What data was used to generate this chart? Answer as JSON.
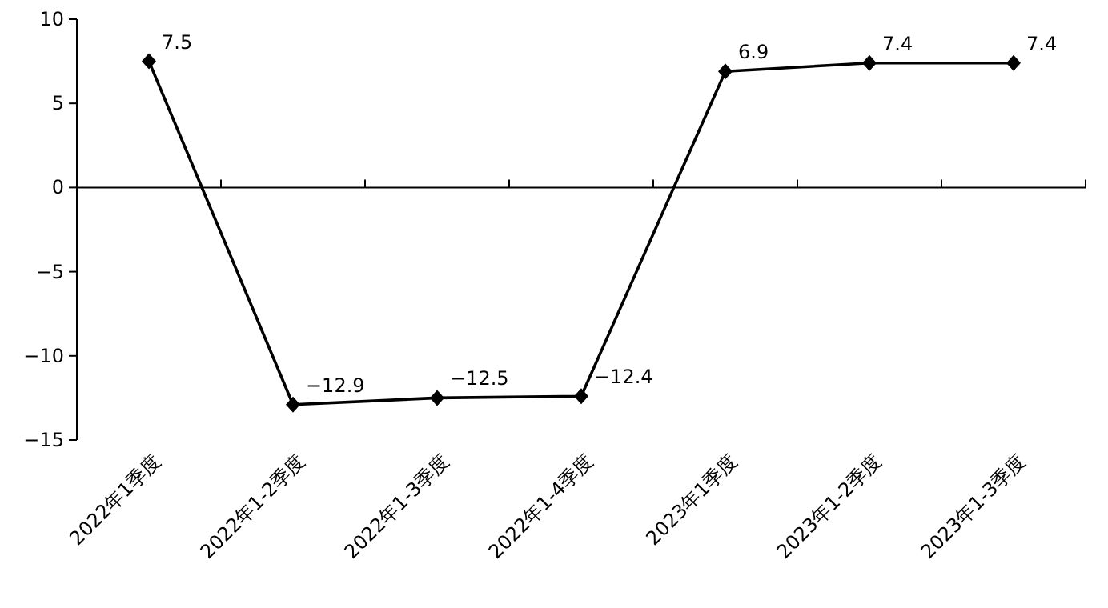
{
  "chart_data": {
    "type": "line",
    "categories": [
      "2022年1季度",
      "2022年1-2季度",
      "2022年1-3季度",
      "2022年1-4季度",
      "2023年1季度",
      "2023年1-2季度",
      "2023年1-3季度"
    ],
    "series": [
      {
        "color": "#000000",
        "values": [
          7.5,
          -12.9,
          -12.5,
          -12.4,
          6.9,
          7.4,
          7.4
        ]
      }
    ],
    "ylim": [
      -15,
      10
    ],
    "yticks": [
      -15,
      -10,
      -5,
      0,
      5,
      10
    ],
    "marker": "diamond",
    "data_labels": true
  }
}
